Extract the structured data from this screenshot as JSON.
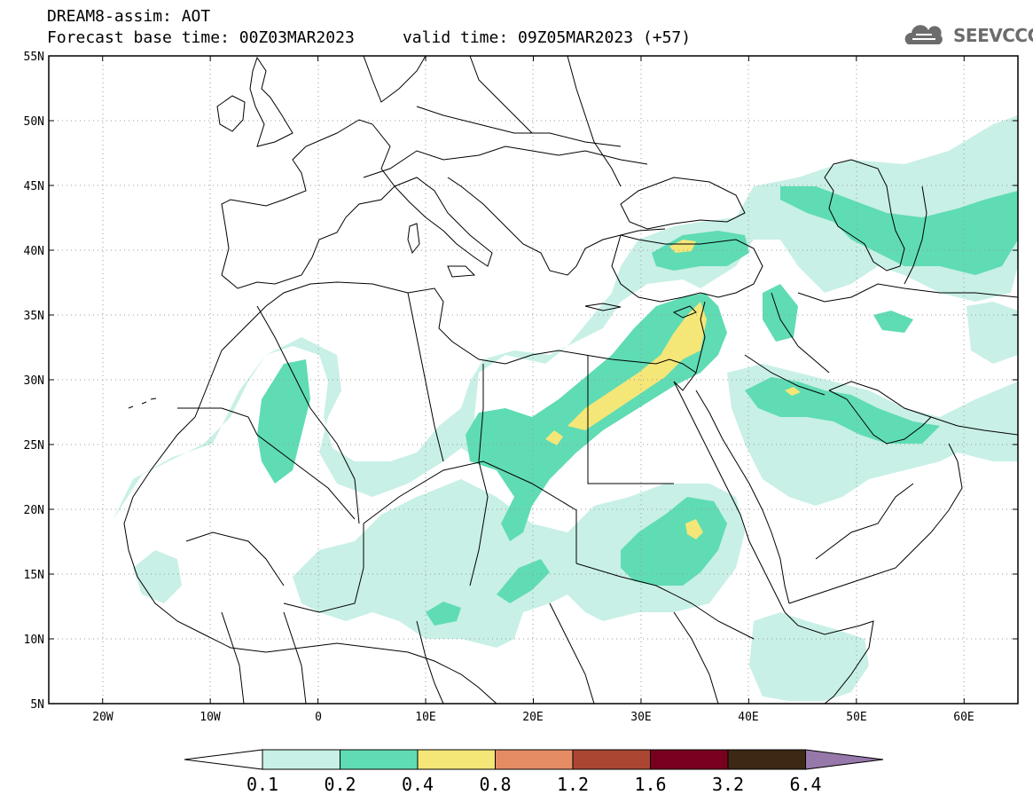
{
  "header": {
    "title_line1": "DREAM8-assim: AOT",
    "title_line2": "Forecast base time: 00Z03MAR2023     valid time: 09Z05MAR2023 (+57)",
    "logo_text": "SEEVCCC"
  },
  "map": {
    "lat_labels": [
      "55N",
      "50N",
      "45N",
      "40N",
      "35N",
      "30N",
      "25N",
      "20N",
      "15N",
      "10N",
      "5N"
    ],
    "lon_labels": [
      "20W",
      "10W",
      "0",
      "10E",
      "20E",
      "30E",
      "40E",
      "50E",
      "60E"
    ],
    "lat_range": [
      5,
      55
    ],
    "lon_range": [
      -25,
      65
    ],
    "grid": "dotted"
  },
  "colorbar": {
    "labels": [
      "0.1",
      "0.2",
      "0.4",
      "0.8",
      "1.2",
      "1.6",
      "3.2",
      "6.4"
    ],
    "colors": [
      "#ffffff",
      "#c8f0e6",
      "#5fdcb4",
      "#f5e678",
      "#e68c64",
      "#aa4632",
      "#78001e",
      "#3c2814",
      "#9678aa"
    ]
  },
  "aot_colors": {
    "light": "#c8f0e6",
    "medium": "#5fdcb4",
    "high": "#f5e678"
  }
}
